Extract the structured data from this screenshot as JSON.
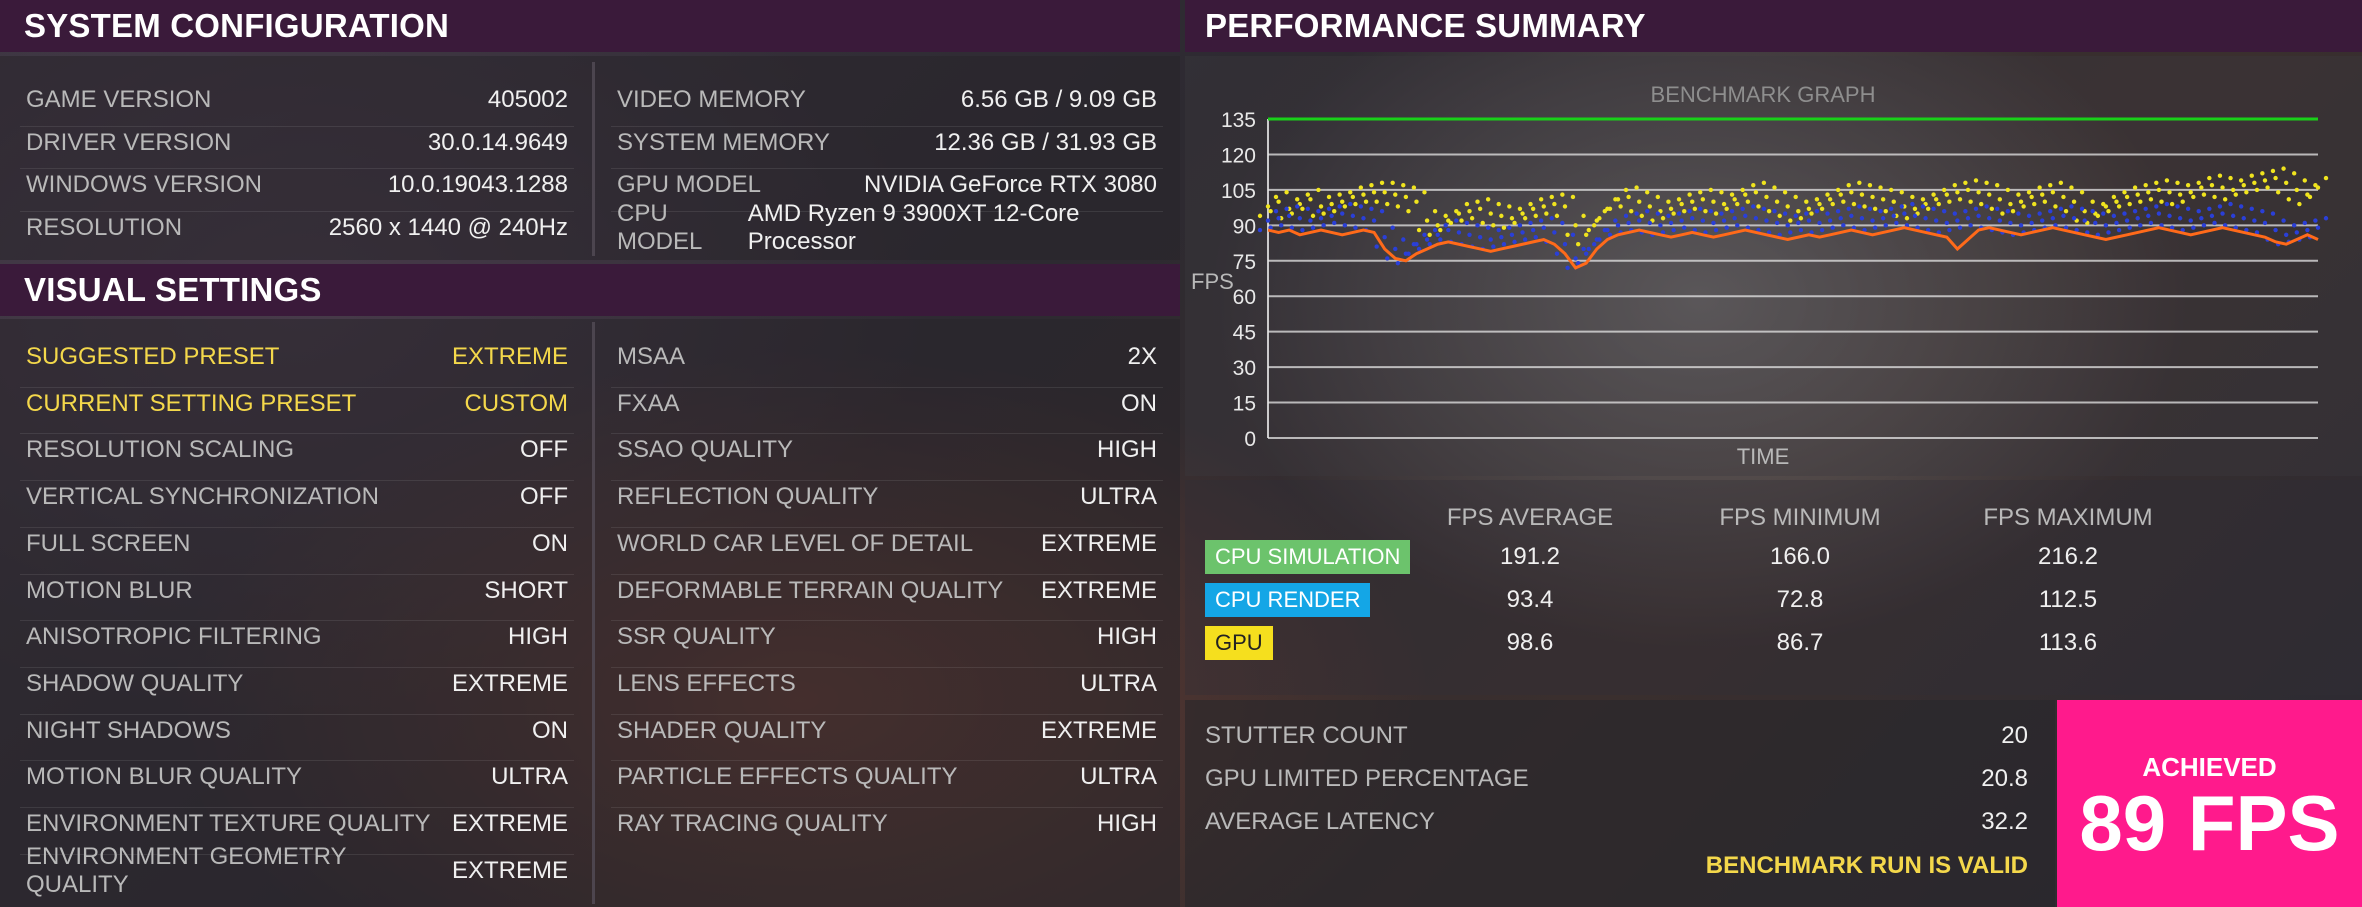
{
  "system_config": {
    "title": "SYSTEM CONFIGURATION",
    "left": [
      {
        "label": "GAME VERSION",
        "value": "405002"
      },
      {
        "label": "DRIVER VERSION",
        "value": "30.0.14.9649"
      },
      {
        "label": "WINDOWS VERSION",
        "value": "10.0.19043.1288"
      },
      {
        "label": "RESOLUTION",
        "value": "2560 x 1440 @ 240Hz"
      }
    ],
    "right": [
      {
        "label": "VIDEO MEMORY",
        "value": "6.56 GB / 9.09 GB"
      },
      {
        "label": "SYSTEM MEMORY",
        "value": "12.36 GB / 31.93 GB"
      },
      {
        "label": "GPU MODEL",
        "value": "NVIDIA GeForce RTX 3080"
      },
      {
        "label": "CPU MODEL",
        "value": "AMD Ryzen 9 3900XT 12-Core Processor"
      }
    ]
  },
  "visual_settings": {
    "title": "VISUAL SETTINGS",
    "left": [
      {
        "label": "SUGGESTED PRESET",
        "value": "EXTREME",
        "highlight": true
      },
      {
        "label": "CURRENT SETTING PRESET",
        "value": "CUSTOM",
        "highlight": true
      },
      {
        "label": "RESOLUTION SCALING",
        "value": "OFF"
      },
      {
        "label": "VERTICAL SYNCHRONIZATION",
        "value": "OFF"
      },
      {
        "label": "FULL SCREEN",
        "value": "ON"
      },
      {
        "label": "MOTION BLUR",
        "value": "SHORT"
      },
      {
        "label": "ANISOTROPIC FILTERING",
        "value": "HIGH"
      },
      {
        "label": "SHADOW QUALITY",
        "value": "EXTREME"
      },
      {
        "label": "NIGHT SHADOWS",
        "value": "ON"
      },
      {
        "label": "MOTION BLUR QUALITY",
        "value": "ULTRA"
      },
      {
        "label": "ENVIRONMENT TEXTURE QUALITY",
        "value": "EXTREME"
      },
      {
        "label": "ENVIRONMENT GEOMETRY QUALITY",
        "value": "EXTREME"
      }
    ],
    "right": [
      {
        "label": "MSAA",
        "value": "2X"
      },
      {
        "label": "FXAA",
        "value": "ON"
      },
      {
        "label": "SSAO QUALITY",
        "value": "HIGH"
      },
      {
        "label": "REFLECTION QUALITY",
        "value": "ULTRA"
      },
      {
        "label": "WORLD CAR LEVEL OF DETAIL",
        "value": "EXTREME"
      },
      {
        "label": "DEFORMABLE TERRAIN QUALITY",
        "value": "EXTREME"
      },
      {
        "label": "SSR QUALITY",
        "value": "HIGH"
      },
      {
        "label": "LENS EFFECTS",
        "value": "ULTRA"
      },
      {
        "label": "SHADER QUALITY",
        "value": "EXTREME"
      },
      {
        "label": "PARTICLE EFFECTS QUALITY",
        "value": "ULTRA"
      },
      {
        "label": "RAY TRACING QUALITY",
        "value": "HIGH"
      }
    ]
  },
  "performance": {
    "title": "PERFORMANCE SUMMARY",
    "columns": [
      "FPS AVERAGE",
      "FPS MINIMUM",
      "FPS MAXIMUM"
    ],
    "rows": [
      {
        "label": "CPU SIMULATION",
        "color": "#6cc36c",
        "values": [
          "191.2",
          "166.0",
          "216.2"
        ]
      },
      {
        "label": "CPU RENDER",
        "color": "#14a6e6",
        "values": [
          "93.4",
          "72.8",
          "112.5"
        ]
      },
      {
        "label": "GPU",
        "color": "#f5df1e",
        "values": [
          "98.6",
          "86.7",
          "113.6"
        ]
      }
    ],
    "stats": [
      {
        "label": "STUTTER COUNT",
        "value": "20"
      },
      {
        "label": "GPU LIMITED PERCENTAGE",
        "value": "20.8"
      },
      {
        "label": "AVERAGE LATENCY",
        "value": "32.2"
      }
    ],
    "valid_text": "BENCHMARK RUN IS VALID",
    "achieved_label": "ACHIEVED",
    "achieved_value": "89 FPS"
  },
  "chart_data": {
    "type": "line",
    "title": "BENCHMARK GRAPH",
    "xlabel": "TIME",
    "ylabel": "FPS",
    "ylim": [
      0,
      135
    ],
    "yticks": [
      0,
      15,
      30,
      45,
      60,
      75,
      90,
      105,
      120,
      135
    ],
    "grid": true,
    "target_line": 135,
    "colors": {
      "target": "#19d019",
      "gpu": "#f0e41e",
      "cpu_render": "#2a3fd8",
      "achieved": "#ff6a1a"
    },
    "x": [
      0,
      1,
      2,
      3,
      4,
      5,
      6,
      7,
      8,
      9,
      10,
      11,
      12,
      13,
      14,
      15,
      16,
      17,
      18,
      19,
      20,
      21,
      22,
      23,
      24,
      25,
      26,
      27,
      28,
      29,
      30,
      31,
      32,
      33,
      34,
      35,
      36,
      37,
      38,
      39,
      40,
      41,
      42,
      43,
      44,
      45,
      46,
      47,
      48,
      49,
      50,
      51,
      52,
      53,
      54,
      55,
      56,
      57,
      58,
      59,
      60,
      61,
      62,
      63,
      64,
      65,
      66,
      67,
      68,
      69,
      70,
      71,
      72,
      73,
      74,
      75,
      76,
      77,
      78,
      79,
      80,
      81,
      82,
      83,
      84,
      85,
      86,
      87,
      88,
      89,
      90,
      91,
      92,
      93,
      94,
      95,
      96,
      97,
      98,
      99
    ],
    "series": [
      {
        "key": "gpu",
        "values": [
          98,
          100,
          97,
          99,
          101,
          98,
          99,
          100,
          102,
          103,
          104,
          104,
          103,
          102,
          100,
          92,
          90,
          92,
          95,
          96,
          97,
          95,
          94,
          93,
          95,
          97,
          98,
          99,
          98,
          90,
          86,
          92,
          97,
          101,
          102,
          100,
          98,
          96,
          97,
          99,
          100,
          101,
          100,
          99,
          101,
          103,
          104,
          102,
          100,
          98,
          96,
          97,
          99,
          101,
          103,
          104,
          103,
          102,
          101,
          100,
          98,
          97,
          99,
          101,
          103,
          104,
          105,
          104,
          103,
          101,
          99,
          100,
          102,
          103,
          104,
          102,
          100,
          96,
          95,
          98,
          100,
          102,
          103,
          104,
          105,
          104,
          103,
          104,
          106,
          107,
          106,
          105,
          107,
          108,
          109,
          110,
          108,
          105,
          103,
          106
        ]
      },
      {
        "key": "cpu_render",
        "values": [
          92,
          93,
          94,
          93,
          92,
          93,
          94,
          95,
          94,
          93,
          92,
          85,
          80,
          78,
          82,
          84,
          86,
          88,
          87,
          86,
          85,
          84,
          85,
          86,
          87,
          88,
          89,
          87,
          82,
          76,
          78,
          84,
          88,
          90,
          91,
          92,
          91,
          90,
          91,
          92,
          93,
          92,
          91,
          92,
          93,
          94,
          93,
          92,
          91,
          90,
          91,
          92,
          91,
          92,
          93,
          94,
          93,
          92,
          93,
          94,
          95,
          94,
          93,
          92,
          91,
          92,
          93,
          94,
          93,
          92,
          91,
          90,
          91,
          92,
          93,
          94,
          93,
          92,
          91,
          90,
          91,
          92,
          93,
          94,
          95,
          94,
          93,
          92,
          93,
          94,
          95,
          94,
          93,
          92,
          91,
          88,
          86,
          87,
          88,
          89
        ]
      },
      {
        "key": "achieved",
        "values": [
          88,
          87,
          88,
          86,
          87,
          88,
          87,
          86,
          87,
          88,
          87,
          80,
          76,
          75,
          78,
          80,
          82,
          83,
          82,
          81,
          80,
          79,
          80,
          81,
          82,
          83,
          84,
          82,
          78,
          72,
          74,
          80,
          84,
          86,
          87,
          88,
          87,
          86,
          85,
          86,
          87,
          86,
          85,
          86,
          87,
          88,
          87,
          86,
          85,
          84,
          85,
          86,
          85,
          86,
          87,
          88,
          87,
          86,
          87,
          88,
          89,
          88,
          87,
          86,
          85,
          80,
          84,
          88,
          89,
          88,
          87,
          86,
          87,
          88,
          89,
          88,
          87,
          86,
          85,
          84,
          85,
          86,
          87,
          88,
          89,
          88,
          87,
          86,
          87,
          88,
          89,
          88,
          87,
          86,
          85,
          83,
          82,
          84,
          86,
          84
        ]
      }
    ]
  }
}
